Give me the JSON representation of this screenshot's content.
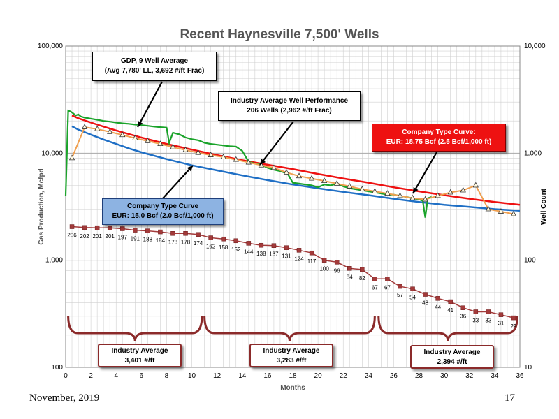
{
  "footer": {
    "date": "November, 2019",
    "page": "17"
  },
  "callouts": {
    "gdp": {
      "line1": "GDP, 9 Well Average",
      "line2": "(Avg 7,780' LL, 3,692 #/ft Frac)"
    },
    "industry": {
      "line1": "Industry Average Well Performance",
      "line2": "206 Wells (2,962 #/ft Frac)"
    },
    "company_red": {
      "line1": "Company Type Curve:",
      "line2": "EUR: 18.75 Bcf (2.5 Bcf/1,000 ft)"
    },
    "company_blue": {
      "line1": "Company Type Curve",
      "line2": "EUR: 15.0 Bcf (2.0 Bcf/1,000 ft)"
    },
    "ind_avg_1": {
      "line1": "Industry Average",
      "line2": "3,401 #/ft"
    },
    "ind_avg_2": {
      "line1": "Industry Average",
      "line2": "3,283 #/ft"
    },
    "ind_avg_3": {
      "line1": "Industry Average",
      "line2": "2,394 #/ft"
    }
  },
  "colors": {
    "gdp_line": "#1aa32a",
    "industry_line": "#f0a050",
    "industry_marker": "#b8860b",
    "company_red": "#ee1111",
    "company_blue": "#1f6fc5",
    "well_count": "#a33a3a",
    "grid": "#d0d0d0"
  },
  "chart_data": {
    "type": "line",
    "title": "Recent Haynesville 7,500' Wells",
    "xlabel": "Months",
    "ylabel": "Gas Production, Mcfpd",
    "y2label": "Well Count",
    "x_range": [
      0,
      36
    ],
    "x_ticks": [
      0,
      2,
      4,
      6,
      8,
      10,
      12,
      14,
      16,
      18,
      20,
      22,
      24,
      26,
      28,
      30,
      32,
      34,
      36
    ],
    "y_scale": "log",
    "y_range": [
      100,
      100000
    ],
    "y_ticks": [
      100,
      1000,
      10000,
      100000
    ],
    "y_tick_labels": [
      "100",
      "1,000",
      "10,000",
      "100,000"
    ],
    "y2_range": [
      10,
      10000
    ],
    "y2_ticks": [
      10,
      100,
      1000,
      10000
    ],
    "y2_tick_labels": [
      "10",
      "100",
      "1,000",
      "10,000"
    ],
    "grid": true,
    "series": [
      {
        "name": "GDP, 9 Well Average",
        "axis": "left",
        "x": [
          0,
          0.2,
          0.4,
          0.6,
          0.8,
          1,
          1.2,
          1.5,
          2,
          2.5,
          3,
          3.5,
          4,
          4.5,
          5,
          5.5,
          6,
          6.5,
          7,
          7.5,
          8,
          8.2,
          8.5,
          9,
          9.5,
          10,
          10.5,
          10.8,
          11,
          11.5,
          12,
          12.5,
          13,
          13.5,
          14,
          14.5,
          15,
          15.5,
          16,
          16.5,
          17,
          17.3,
          17.6,
          18,
          18.5,
          19,
          19.5,
          20,
          20.5,
          21,
          21.5,
          22,
          22.5,
          23,
          23.5,
          24,
          24.5,
          25,
          25.5,
          26,
          26.5,
          27,
          27.5,
          28,
          28.3,
          28.5,
          28.7,
          29
        ],
        "y": [
          4000,
          25000,
          24500,
          23500,
          22500,
          23000,
          22000,
          21500,
          21000,
          20500,
          20000,
          19700,
          19300,
          19000,
          18800,
          18500,
          18300,
          18000,
          17700,
          17500,
          17300,
          12500,
          15500,
          15000,
          14000,
          13500,
          13200,
          12800,
          12500,
          12200,
          12000,
          11800,
          11600,
          11500,
          10500,
          8300,
          8000,
          7800,
          7300,
          7000,
          6800,
          6600,
          6400,
          5300,
          5200,
          5100,
          5000,
          4800,
          5100,
          5000,
          5200,
          4900,
          4700,
          4600,
          4500,
          4400,
          4300,
          4200,
          4100,
          4100,
          4000,
          3900,
          3800,
          3700,
          3600,
          2500,
          3800,
          3900
        ]
      },
      {
        "name": "Industry Average Well Performance",
        "axis": "left",
        "x": [
          0.5,
          1.5,
          2.5,
          3.5,
          4.5,
          5.5,
          6.5,
          7.5,
          8.5,
          9.5,
          10.5,
          11.5,
          12.5,
          13.5,
          14.5,
          15.5,
          16.5,
          17.5,
          18.5,
          19.5,
          20.5,
          21.5,
          22.5,
          23.5,
          24.5,
          25.5,
          26.5,
          27.5,
          28.5,
          29.5,
          30.5,
          31.5,
          32.5,
          33.5,
          34.5,
          35.5
        ],
        "y": [
          9000,
          17500,
          16800,
          15800,
          14800,
          13800,
          13000,
          12200,
          11400,
          10700,
          10100,
          9600,
          9200,
          8700,
          8200,
          7700,
          7300,
          6600,
          6100,
          5800,
          5500,
          5200,
          4900,
          4600,
          4400,
          4200,
          4000,
          3800,
          3700,
          4000,
          4300,
          4500,
          5000,
          3000,
          2850,
          2700
        ]
      },
      {
        "name": "Company Type Curve: EUR: 18.75 Bcf (2.5 Bcf/1,000 ft)",
        "axis": "left",
        "x": [
          0.5,
          1,
          2,
          3,
          4,
          5,
          6,
          8,
          10,
          12,
          14,
          16,
          18,
          20,
          22,
          24,
          26,
          28,
          30,
          32,
          34,
          36
        ],
        "y": [
          22500,
          21200,
          19300,
          17700,
          16300,
          15100,
          14000,
          12200,
          10800,
          9600,
          8600,
          7800,
          7100,
          6400,
          5800,
          5300,
          4800,
          4400,
          4050,
          3750,
          3500,
          3300
        ]
      },
      {
        "name": "Company Type Curve EUR: 15.0 Bcf (2.0 Bcf/1,000 ft)",
        "axis": "left",
        "x": [
          0.5,
          1,
          2,
          3,
          4,
          5,
          6,
          8,
          10,
          12,
          14,
          16,
          18,
          20,
          22,
          24,
          26,
          28,
          30,
          32,
          34,
          36
        ],
        "y": [
          17800,
          16600,
          14900,
          13400,
          12200,
          11100,
          10200,
          8800,
          7700,
          6900,
          6200,
          5600,
          5100,
          4700,
          4350,
          4050,
          3750,
          3500,
          3300,
          3150,
          3000,
          2900
        ]
      },
      {
        "name": "Well Count",
        "axis": "right",
        "x": [
          0.5,
          1.5,
          2.5,
          3.5,
          4.5,
          5.5,
          6.5,
          7.5,
          8.5,
          9.5,
          10.5,
          11.5,
          12.5,
          13.5,
          14.5,
          15.5,
          16.5,
          17.5,
          18.5,
          19.5,
          20.5,
          21.5,
          22.5,
          23.5,
          24.5,
          25.5,
          26.5,
          27.5,
          28.5,
          29.5,
          30.5,
          31.5,
          32.5,
          33.5,
          34.5,
          35.5
        ],
        "y": [
          206,
          202,
          201,
          201,
          197,
          191,
          188,
          184,
          178,
          178,
          174,
          162,
          158,
          152,
          144,
          138,
          137,
          131,
          124,
          117,
          100,
          96,
          84,
          82,
          67,
          67,
          57,
          54,
          48,
          44,
          41,
          36,
          33,
          33,
          31,
          29
        ],
        "labels": [
          "206",
          "202",
          "201",
          "201",
          "197",
          "191",
          "188",
          "184",
          "178",
          "178",
          "174",
          "162",
          "158",
          "152",
          "144",
          "138",
          "137",
          "131",
          "124",
          "117",
          "100",
          "96",
          "84",
          "82",
          "67",
          "67",
          "57",
          "54",
          "48",
          "44",
          "41",
          "36",
          "33",
          "33",
          "31",
          "29"
        ]
      }
    ]
  }
}
